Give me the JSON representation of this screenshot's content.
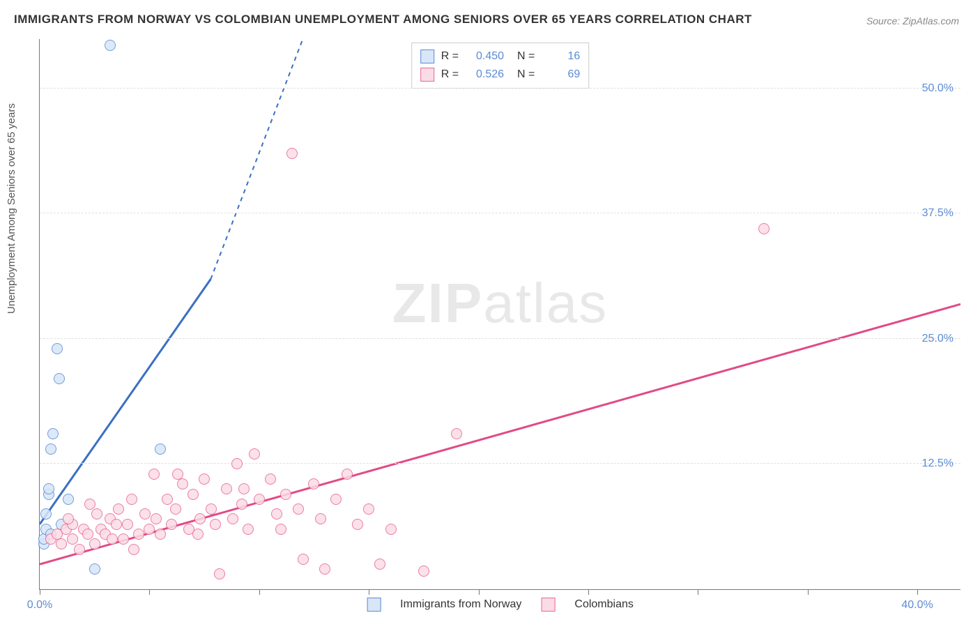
{
  "title": "IMMIGRANTS FROM NORWAY VS COLOMBIAN UNEMPLOYMENT AMONG SENIORS OVER 65 YEARS CORRELATION CHART",
  "source": "Source: ZipAtlas.com",
  "ylabel": "Unemployment Among Seniors over 65 years",
  "watermark_bold": "ZIP",
  "watermark_light": "atlas",
  "chart": {
    "type": "scatter",
    "background_color": "#ffffff",
    "grid_color": "#e0e0e0",
    "axis_color": "#777777",
    "tick_label_color": "#5b8bd4",
    "label_fontsize": 15,
    "tick_fontsize": 16,
    "title_fontsize": 17,
    "xlim": [
      0,
      42
    ],
    "ylim": [
      0,
      55
    ],
    "x_ticks": [
      0,
      5,
      10,
      15,
      20,
      25,
      30,
      35,
      40
    ],
    "x_tick_labels": {
      "0": "0.0%",
      "40": "40.0%"
    },
    "y_ticks": [
      12.5,
      25.0,
      37.5,
      50.0
    ],
    "y_tick_labels": [
      "12.5%",
      "25.0%",
      "37.5%",
      "50.0%"
    ],
    "marker_radius": 8,
    "marker_stroke_width": 1.5,
    "trend_line_width": 3,
    "series": [
      {
        "name": "Immigrants from Norway",
        "key": "norway",
        "fill": "#d8e6f7",
        "stroke": "#5b8bd4",
        "R": "0.450",
        "N": "16",
        "trend": {
          "x1": 0,
          "y1": 6.5,
          "x2": 7.8,
          "y2": 31,
          "dash_extend_x": 12,
          "dash_extend_y": 55,
          "color": "#3a6fc4"
        },
        "points": [
          {
            "x": 0.2,
            "y": 4.5
          },
          {
            "x": 0.2,
            "y": 5.0
          },
          {
            "x": 0.3,
            "y": 6.0
          },
          {
            "x": 0.4,
            "y": 9.5
          },
          {
            "x": 0.4,
            "y": 10.0
          },
          {
            "x": 0.5,
            "y": 14.0
          },
          {
            "x": 0.6,
            "y": 15.5
          },
          {
            "x": 0.9,
            "y": 21.0
          },
          {
            "x": 0.8,
            "y": 24.0
          },
          {
            "x": 1.3,
            "y": 9.0
          },
          {
            "x": 2.5,
            "y": 2.0
          },
          {
            "x": 3.2,
            "y": 54.3
          },
          {
            "x": 0.5,
            "y": 5.5
          },
          {
            "x": 1.0,
            "y": 6.5
          },
          {
            "x": 5.5,
            "y": 14.0
          },
          {
            "x": 0.3,
            "y": 7.5
          }
        ]
      },
      {
        "name": "Colombians",
        "key": "colombians",
        "fill": "#fbdce5",
        "stroke": "#e8669a",
        "R": "0.526",
        "N": "69",
        "trend": {
          "x1": 0,
          "y1": 2.5,
          "x2": 42,
          "y2": 28.5,
          "color": "#e14a86"
        },
        "points": [
          {
            "x": 0.5,
            "y": 5.0
          },
          {
            "x": 0.8,
            "y": 5.5
          },
          {
            "x": 1.0,
            "y": 4.5
          },
          {
            "x": 1.2,
            "y": 6.0
          },
          {
            "x": 1.5,
            "y": 5.0
          },
          {
            "x": 1.5,
            "y": 6.5
          },
          {
            "x": 1.8,
            "y": 4.0
          },
          {
            "x": 2.0,
            "y": 6.0
          },
          {
            "x": 2.2,
            "y": 5.5
          },
          {
            "x": 2.3,
            "y": 8.5
          },
          {
            "x": 2.5,
            "y": 4.5
          },
          {
            "x": 2.8,
            "y": 6.0
          },
          {
            "x": 3.0,
            "y": 5.5
          },
          {
            "x": 3.2,
            "y": 7.0
          },
          {
            "x": 3.3,
            "y": 5.0
          },
          {
            "x": 3.5,
            "y": 6.5
          },
          {
            "x": 3.8,
            "y": 5.0
          },
          {
            "x": 4.0,
            "y": 6.5
          },
          {
            "x": 4.2,
            "y": 9.0
          },
          {
            "x": 4.5,
            "y": 5.5
          },
          {
            "x": 4.8,
            "y": 7.5
          },
          {
            "x": 5.0,
            "y": 6.0
          },
          {
            "x": 5.2,
            "y": 11.5
          },
          {
            "x": 5.5,
            "y": 5.5
          },
          {
            "x": 5.8,
            "y": 9.0
          },
          {
            "x": 6.0,
            "y": 6.5
          },
          {
            "x": 6.2,
            "y": 8.0
          },
          {
            "x": 6.5,
            "y": 10.5
          },
          {
            "x": 6.8,
            "y": 6.0
          },
          {
            "x": 7.0,
            "y": 9.5
          },
          {
            "x": 7.2,
            "y": 5.5
          },
          {
            "x": 7.5,
            "y": 11.0
          },
          {
            "x": 7.8,
            "y": 8.0
          },
          {
            "x": 8.0,
            "y": 6.5
          },
          {
            "x": 8.2,
            "y": 1.5
          },
          {
            "x": 8.5,
            "y": 10.0
          },
          {
            "x": 8.8,
            "y": 7.0
          },
          {
            "x": 9.0,
            "y": 12.5
          },
          {
            "x": 9.2,
            "y": 8.5
          },
          {
            "x": 9.5,
            "y": 6.0
          },
          {
            "x": 9.8,
            "y": 13.5
          },
          {
            "x": 10.0,
            "y": 9.0
          },
          {
            "x": 10.5,
            "y": 11.0
          },
          {
            "x": 10.8,
            "y": 7.5
          },
          {
            "x": 11.0,
            "y": 6.0
          },
          {
            "x": 11.2,
            "y": 9.5
          },
          {
            "x": 11.5,
            "y": 43.5
          },
          {
            "x": 11.8,
            "y": 8.0
          },
          {
            "x": 12.0,
            "y": 3.0
          },
          {
            "x": 12.5,
            "y": 10.5
          },
          {
            "x": 12.8,
            "y": 7.0
          },
          {
            "x": 13.0,
            "y": 2.0
          },
          {
            "x": 13.5,
            "y": 9.0
          },
          {
            "x": 14.0,
            "y": 11.5
          },
          {
            "x": 14.5,
            "y": 6.5
          },
          {
            "x": 15.0,
            "y": 8.0
          },
          {
            "x": 15.5,
            "y": 2.5
          },
          {
            "x": 16.0,
            "y": 6.0
          },
          {
            "x": 17.5,
            "y": 1.8
          },
          {
            "x": 19.0,
            "y": 15.5
          },
          {
            "x": 33.0,
            "y": 36.0
          },
          {
            "x": 1.3,
            "y": 7.0
          },
          {
            "x": 2.6,
            "y": 7.5
          },
          {
            "x": 3.6,
            "y": 8.0
          },
          {
            "x": 4.3,
            "y": 4.0
          },
          {
            "x": 5.3,
            "y": 7.0
          },
          {
            "x": 6.3,
            "y": 11.5
          },
          {
            "x": 7.3,
            "y": 7.0
          },
          {
            "x": 9.3,
            "y": 10.0
          }
        ]
      }
    ],
    "bottom_legend": [
      {
        "swatch_fill": "#d8e6f7",
        "swatch_stroke": "#5b8bd4",
        "label": "Immigrants from Norway"
      },
      {
        "swatch_fill": "#fbdce5",
        "swatch_stroke": "#e8669a",
        "label": "Colombians"
      }
    ]
  }
}
